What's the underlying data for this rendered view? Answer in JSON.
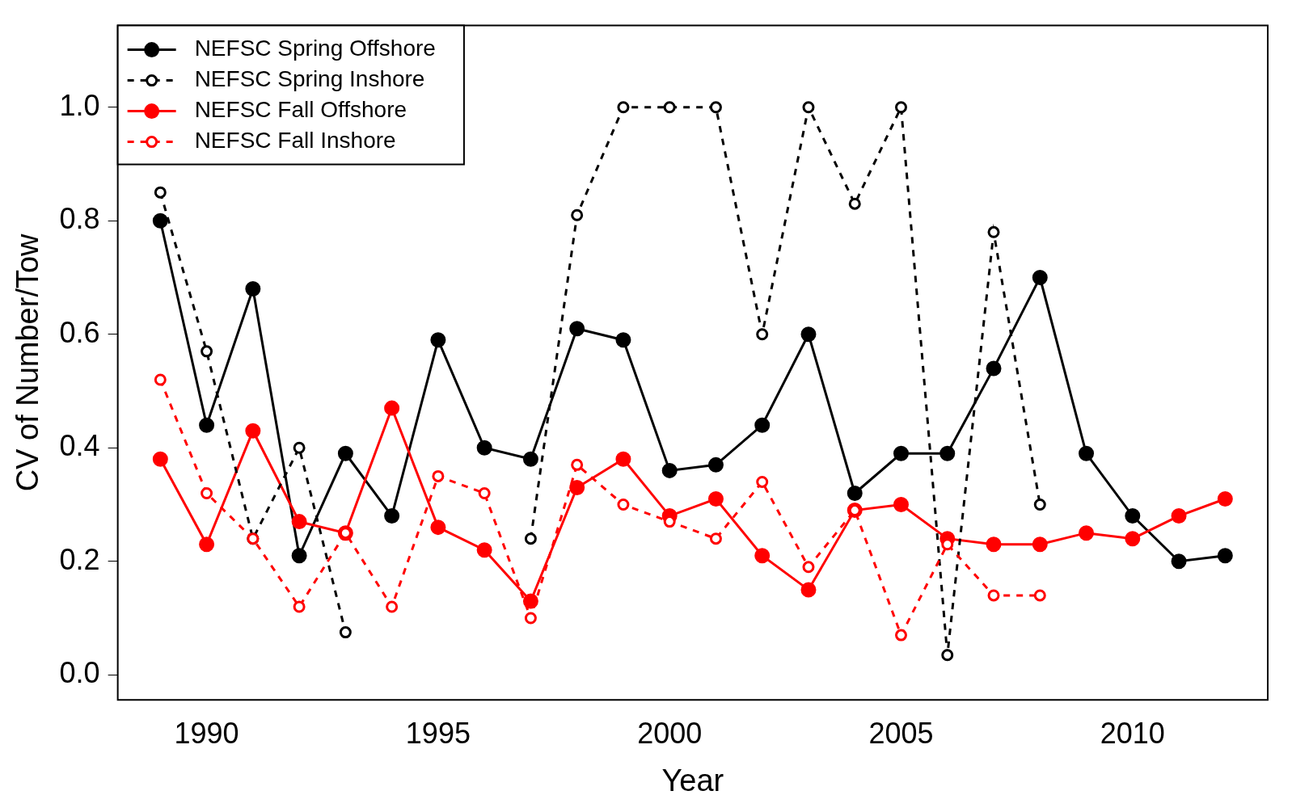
{
  "chart_data": {
    "type": "line",
    "xlabel": "Year",
    "ylabel": "CV of Number/Tow",
    "x": [
      1989,
      1990,
      1991,
      1992,
      1993,
      1994,
      1995,
      1996,
      1997,
      1998,
      1999,
      2000,
      2001,
      2002,
      2003,
      2004,
      2005,
      2006,
      2007,
      2008,
      2009,
      2010,
      2011,
      2012
    ],
    "series": [
      {
        "name": "NEFSC Spring Offshore",
        "color": "#000000",
        "line_style": "solid",
        "values": [
          0.8,
          0.44,
          0.68,
          0.21,
          0.39,
          0.28,
          0.59,
          0.4,
          0.38,
          0.61,
          0.59,
          0.36,
          0.37,
          0.44,
          0.6,
          0.32,
          0.39,
          0.39,
          0.54,
          0.7,
          0.39,
          0.28,
          0.2,
          0.21
        ]
      },
      {
        "name": "NEFSC Spring Inshore",
        "color": "#000000",
        "line_style": "dashed",
        "values": [
          0.85,
          0.57,
          0.24,
          0.4,
          0.075,
          null,
          null,
          null,
          0.24,
          0.81,
          1.0,
          1.0,
          1.0,
          0.6,
          1.0,
          0.83,
          1.0,
          0.035,
          0.78,
          0.3,
          null,
          null,
          null,
          null
        ]
      },
      {
        "name": "NEFSC Fall Offshore",
        "color": "#ff0000",
        "line_style": "solid",
        "values": [
          0.38,
          0.23,
          0.43,
          0.27,
          0.25,
          0.47,
          0.26,
          0.22,
          0.13,
          0.33,
          0.38,
          0.28,
          0.31,
          0.21,
          0.15,
          0.29,
          0.3,
          0.24,
          0.23,
          0.23,
          0.25,
          0.24,
          0.28,
          0.31
        ]
      },
      {
        "name": "NEFSC Fall Inshore",
        "color": "#ff0000",
        "line_style": "dashed",
        "values": [
          0.52,
          0.32,
          0.24,
          0.12,
          0.25,
          0.12,
          0.35,
          0.32,
          0.1,
          0.37,
          0.3,
          0.27,
          0.24,
          0.34,
          0.19,
          0.29,
          0.07,
          0.23,
          0.14,
          0.14,
          null,
          null,
          null,
          null
        ]
      }
    ],
    "xlim": [
      1988.08,
      2012.92
    ],
    "xticks": [
      1990,
      1995,
      2000,
      2005,
      2010
    ],
    "ylim": [
      -0.044,
      1.144
    ],
    "yticks": [
      {
        "value": 0,
        "label": "0.0"
      },
      0.2,
      0.4,
      0.6,
      0.8,
      {
        "value": 1,
        "label": "1.0"
      }
    ],
    "grid": false,
    "legend": "top left",
    "marker": "circle"
  }
}
